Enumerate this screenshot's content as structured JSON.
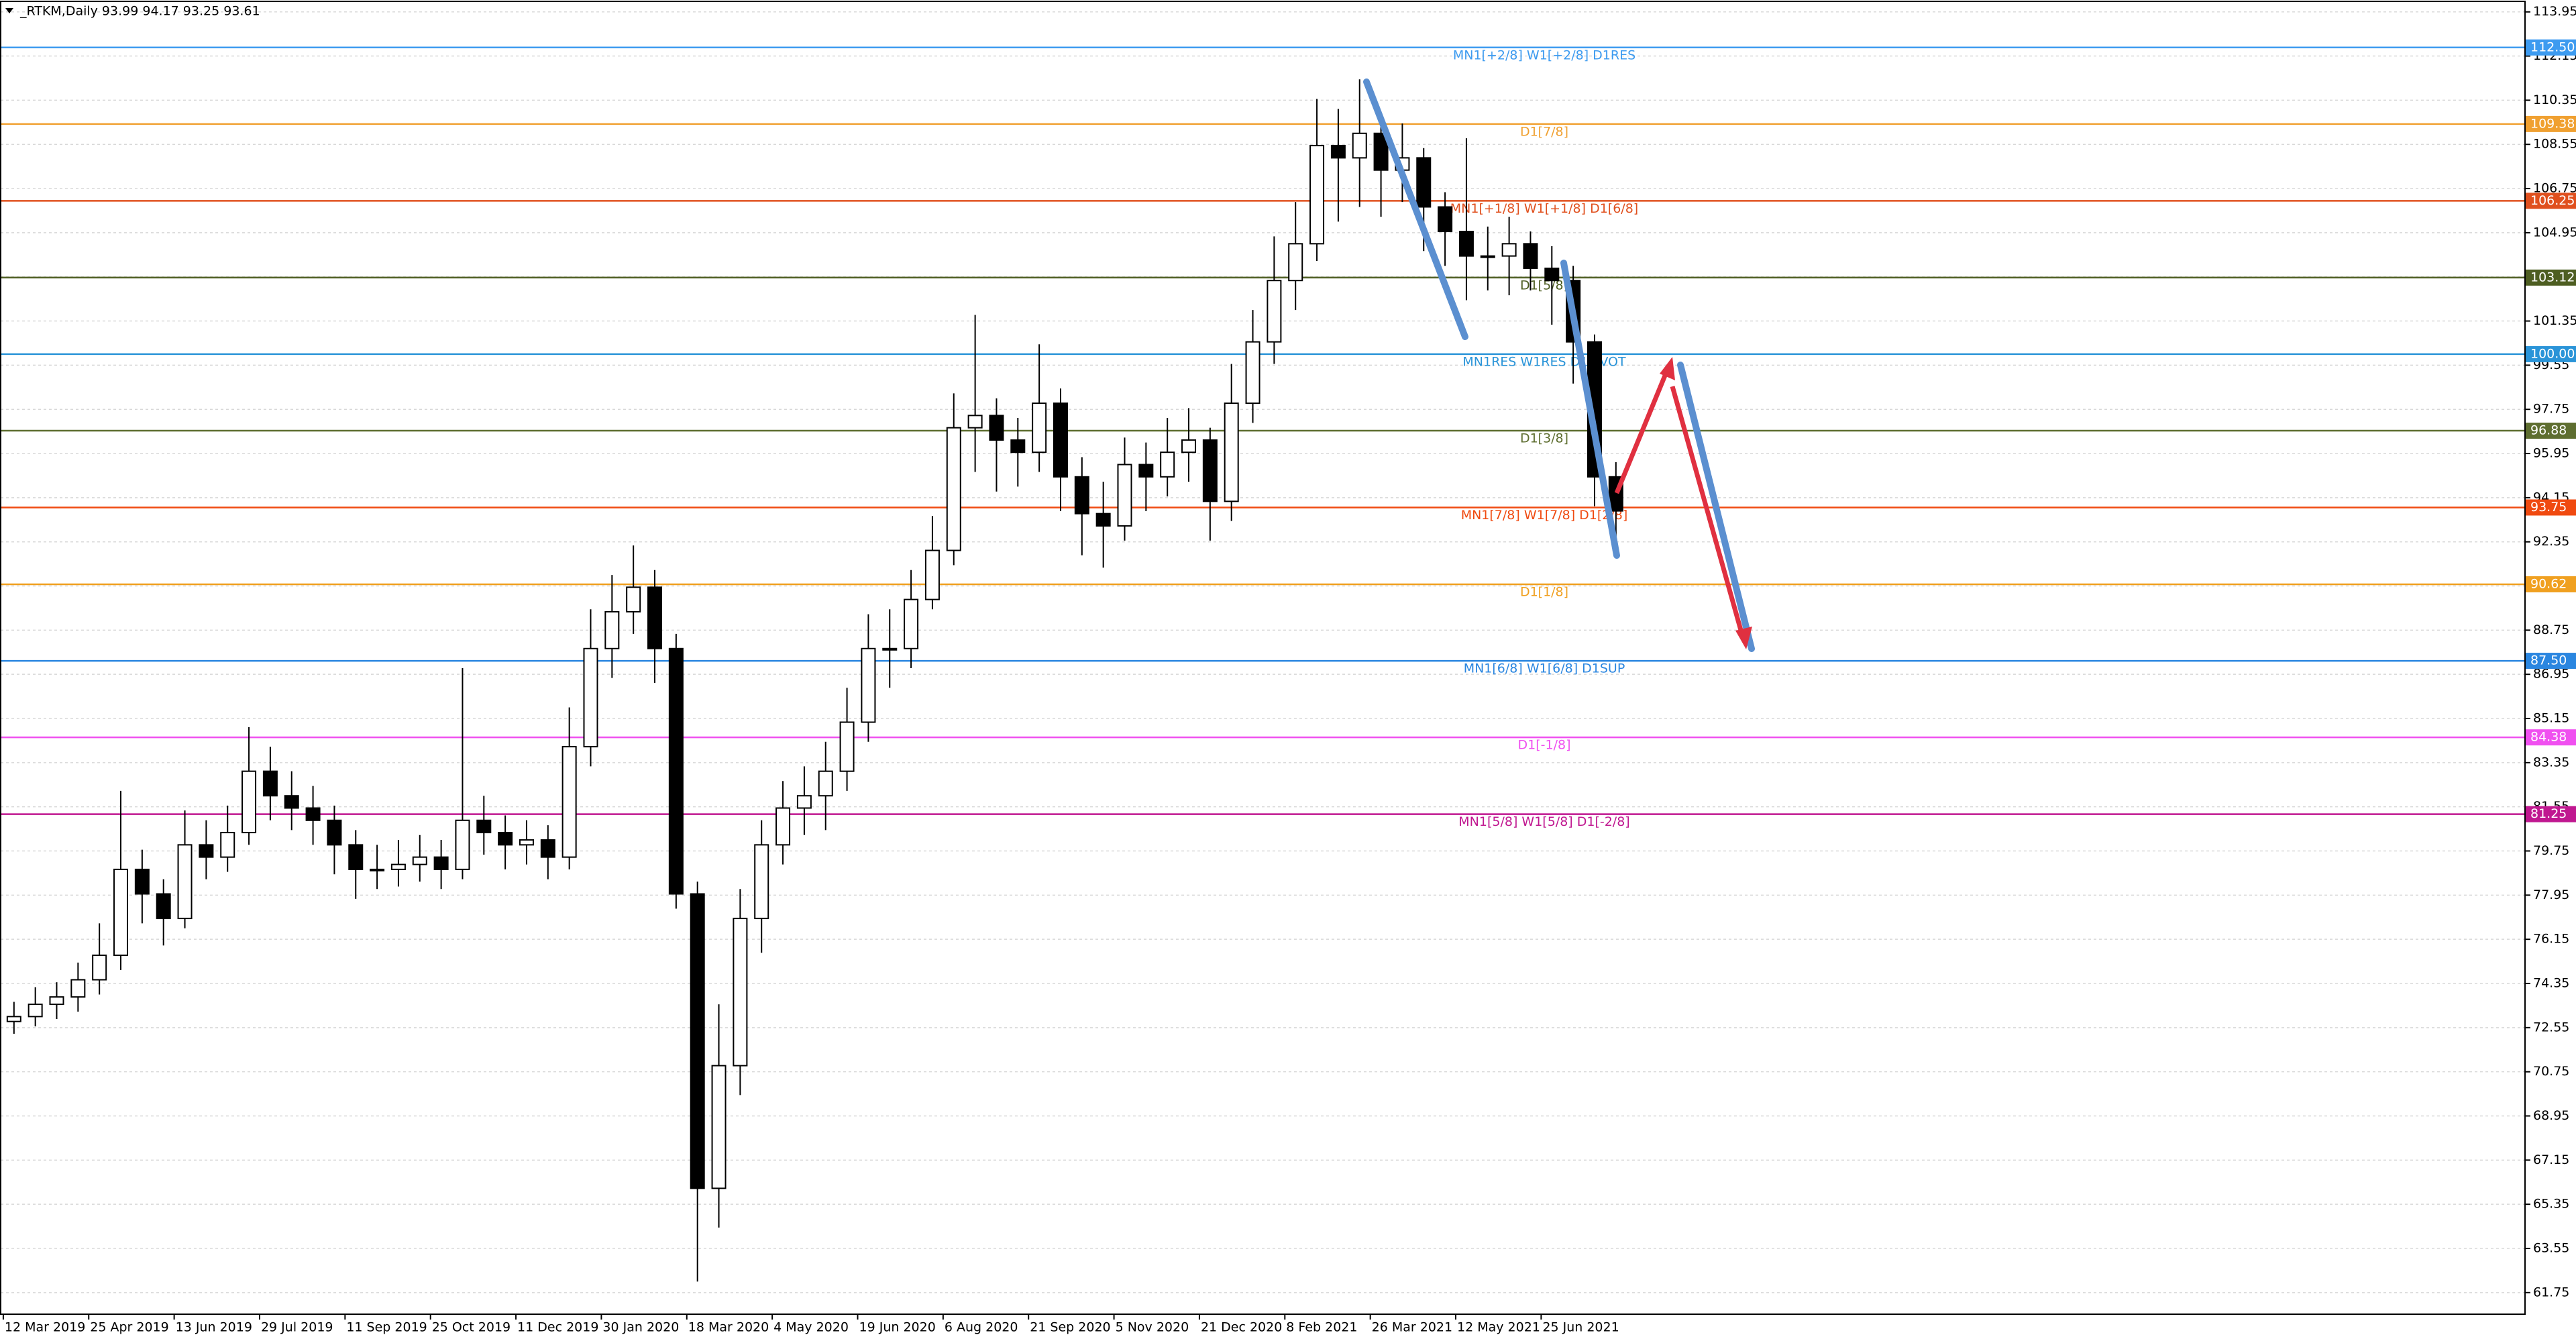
{
  "chart_data": {
    "type": "candlestick",
    "title": "_RTKM,Daily  93.99 94.17 93.25 93.61",
    "categories": [
      "12 Mar 2019",
      null,
      null,
      null,
      "25 Apr 2019",
      null,
      null,
      null,
      "13 Jun 2019",
      null,
      null,
      null,
      "29 Jul 2019",
      null,
      null,
      null,
      "11 Sep 2019",
      null,
      null,
      null,
      "25 Oct 2019",
      null,
      null,
      null,
      "11 Dec 2019",
      null,
      null,
      null,
      "30 Jan 2020",
      null,
      null,
      null,
      "18 Mar 2020",
      null,
      null,
      null,
      "4 May 2020",
      null,
      null,
      null,
      "19 Jun 2020",
      null,
      null,
      null,
      "6 Aug 2020",
      null,
      null,
      null,
      "21 Sep 2020",
      null,
      null,
      null,
      "5 Nov 2020",
      null,
      null,
      null,
      "21 Dec 2020",
      null,
      null,
      null,
      "8 Feb 2021",
      null,
      null,
      null,
      "26 Mar 2021",
      null,
      null,
      null,
      "12 May 2021",
      null,
      null,
      null,
      "25 Jun 2021",
      null,
      null,
      null
    ],
    "open": [
      72.8,
      73.0,
      73.5,
      73.8,
      74.5,
      75.5,
      79,
      78,
      77,
      80,
      79.5,
      80.5,
      83,
      82,
      81.5,
      81,
      80,
      79,
      79,
      79.2,
      79.5,
      79,
      81,
      80.5,
      80,
      80.2,
      79.5,
      84,
      88,
      89.5,
      90.5,
      88,
      78,
      66,
      71,
      77,
      80,
      81.5,
      82,
      83,
      85,
      88,
      88,
      90,
      92,
      97,
      97.5,
      96.5,
      96,
      98,
      95,
      93.5,
      93,
      95.5,
      95,
      96,
      96.5,
      94,
      98,
      100.5,
      103,
      104.5,
      108.5,
      108,
      109,
      107.5,
      108,
      106,
      105,
      104,
      104,
      104.5,
      103.5,
      103,
      100.5,
      95
    ],
    "high": [
      73.6,
      74.2,
      74.4,
      75.2,
      76.8,
      82.2,
      79.8,
      78.6,
      81.4,
      81.0,
      81.6,
      84.8,
      84.0,
      83.0,
      82.4,
      81.6,
      80.6,
      80.0,
      80.2,
      80.4,
      80.2,
      87.2,
      82.0,
      81.2,
      81.0,
      80.8,
      85.6,
      89.6,
      91.0,
      92.2,
      91.2,
      88.6,
      78.5,
      73.5,
      78.2,
      81.0,
      82.6,
      83.2,
      84.2,
      86.4,
      89.4,
      89.6,
      91.2,
      93.4,
      98.4,
      101.6,
      98.2,
      97.4,
      100.4,
      98.6,
      95.8,
      94.8,
      96.6,
      96.4,
      97.4,
      97.8,
      97.0,
      99.6,
      101.8,
      104.8,
      106.2,
      110.4,
      110.0,
      111.2,
      109.6,
      109.4,
      108.4,
      106.6,
      108.8,
      105.2,
      105.6,
      105.0,
      104.4,
      103.6,
      100.8,
      95.6
    ],
    "low": [
      72.3,
      72.6,
      72.9,
      73.2,
      73.9,
      74.9,
      76.8,
      75.9,
      76.6,
      78.6,
      78.9,
      80.0,
      81.0,
      80.6,
      80.0,
      78.8,
      77.8,
      78.2,
      78.3,
      78.5,
      78.2,
      78.6,
      79.6,
      79.0,
      79.2,
      78.6,
      79.0,
      83.2,
      86.8,
      88.6,
      86.6,
      77.4,
      62.2,
      64.4,
      69.8,
      75.6,
      79.2,
      80.4,
      80.6,
      82.2,
      84.2,
      86.4,
      87.2,
      89.6,
      91.4,
      95.2,
      94.4,
      94.6,
      95.2,
      93.6,
      91.8,
      91.3,
      92.4,
      93.6,
      94.2,
      94.8,
      92.4,
      93.2,
      97.2,
      99.6,
      101.8,
      103.8,
      105.4,
      106.0,
      105.6,
      106.2,
      104.2,
      103.6,
      102.2,
      102.6,
      102.4,
      102.6,
      101.2,
      98.8,
      93.8,
      92.2
    ],
    "close": [
      73.0,
      73.5,
      73.8,
      74.5,
      75.5,
      79,
      78,
      77,
      80,
      79.5,
      80.5,
      83,
      82,
      81.5,
      81,
      80,
      79,
      79,
      79.2,
      79.5,
      79,
      81,
      80.5,
      80,
      80.2,
      79.5,
      84,
      88,
      89.5,
      90.5,
      88,
      78,
      66,
      71,
      77,
      80,
      81.5,
      82,
      83,
      85,
      88,
      88,
      90,
      92,
      97,
      97.5,
      96.5,
      96,
      98,
      95,
      93.5,
      93,
      95.5,
      95,
      96,
      96.5,
      94,
      98,
      100.5,
      103,
      104.5,
      108.5,
      108,
      109,
      107.5,
      108,
      106,
      105,
      104,
      104,
      104.5,
      103.5,
      103,
      100.5,
      95,
      93.61
    ],
    "up_color": "#ffffff",
    "down_color": "#000000",
    "ylim": [
      60.87,
      114.38
    ],
    "yticks": [
      113.95,
      112.15,
      110.35,
      108.55,
      106.75,
      104.95,
      103.15,
      101.35,
      99.55,
      97.75,
      95.95,
      94.15,
      92.35,
      90.55,
      88.75,
      86.95,
      85.15,
      83.35,
      81.55,
      79.75,
      77.95,
      76.15,
      74.35,
      72.55,
      70.75,
      68.95,
      67.15,
      65.35,
      63.55,
      61.75
    ],
    "grid": true,
    "levels": [
      {
        "value": 112.5,
        "label": "112.50",
        "name": "MN1[+2/8] W1[+2/8] D1RES",
        "color": "#3d9bf0"
      },
      {
        "value": 109.38,
        "label": "109.38",
        "name": "D1[7/8]",
        "color": "#f0a030"
      },
      {
        "value": 106.25,
        "label": "106.25",
        "name": "MN1[+1/8] W1[+1/8] D1[6/8]",
        "color": "#e0501e"
      },
      {
        "value": 103.12,
        "label": "103.12",
        "name": "D1[5/8]",
        "color": "#4e5e22"
      },
      {
        "value": 100.0,
        "label": "100.00",
        "name": "MN1RES W1RES D1PIVOT",
        "color": "#2a94d8"
      },
      {
        "value": 96.88,
        "label": "96.88",
        "name": "D1[3/8]",
        "color": "#5e6e30"
      },
      {
        "value": 93.75,
        "label": "93.75",
        "name": "MN1[7/8] W1[7/8] D1[2/8]",
        "color": "#f04a10"
      },
      {
        "value": 90.62,
        "label": "90.62",
        "name": "D1[1/8]",
        "color": "#f0a020"
      },
      {
        "value": 87.5,
        "label": "87.50",
        "name": "MN1[6/8] W1[6/8] D1SUP",
        "color": "#2a86e0"
      },
      {
        "value": 84.38,
        "label": "84.38",
        "name": "D1[-1/8]",
        "color": "#f050f0"
      },
      {
        "value": 81.25,
        "label": "81.25",
        "name": "MN1[5/8] W1[5/8] D1[-2/8]",
        "color": "#c01890"
      }
    ]
  }
}
